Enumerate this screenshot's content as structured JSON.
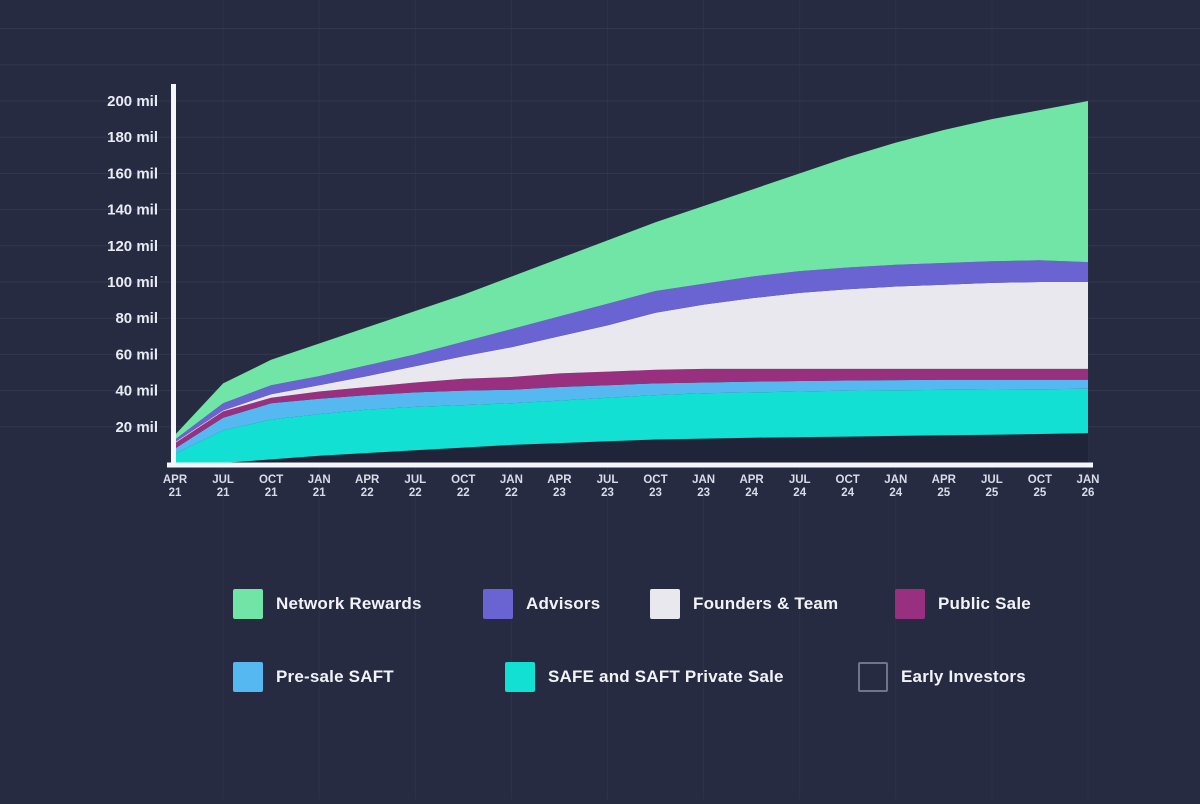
{
  "page": {
    "background_color": "#262b42",
    "axis_color": "#f5f6fa",
    "grid_color_h": "rgba(255,255,255,0.06)",
    "grid_color_v": "rgba(255,255,255,0.035)",
    "y_label_color": "#e9ebf3",
    "x_label_color": "#d9dce8"
  },
  "chart_data": {
    "type": "area",
    "stacked": true,
    "title": "",
    "xlabel": "",
    "ylabel": "",
    "y_unit": "mil",
    "ylim": [
      0,
      200
    ],
    "y_tick_step": 20,
    "y_tick_labels": [
      "20 mil",
      "40 mil",
      "60 mil",
      "80 mil",
      "100 mil",
      "120 mil",
      "140 mil",
      "160 mil",
      "180 mil",
      "200 mil"
    ],
    "x_labels": [
      "APR 21",
      "JUL 21",
      "OCT 21",
      "JAN 21",
      "APR 22",
      "JUL 22",
      "OCT 22",
      "JAN 22",
      "APR 23",
      "JUL 23",
      "OCT 23",
      "JAN 23",
      "APR 24",
      "JUL 24",
      "OCT 24",
      "JAN 24",
      "APR 25",
      "JUL 25",
      "OCT 25",
      "JAN 26"
    ],
    "grid": true,
    "legend_position": "bottom",
    "series": [
      {
        "id": "early_investors",
        "label": "Early Investors",
        "color": "#1f2438",
        "legend_fill": "#262b42",
        "legend_border": "#70758c",
        "values": [
          0,
          0,
          2,
          4,
          5.5,
          7,
          8.5,
          10,
          11,
          12,
          13,
          13.5,
          14,
          14.3,
          14.6,
          15,
          15.3,
          15.6,
          16,
          16.5
        ]
      },
      {
        "id": "safe_saft_private",
        "label": "SAFE and SAFT Private Sale",
        "color": "#12e0d2",
        "values": [
          5,
          18,
          22,
          23,
          24,
          24,
          23.5,
          23,
          23.5,
          24,
          24.5,
          25,
          25,
          25.2,
          25.4,
          25.2,
          25.1,
          25,
          24.8,
          24.5
        ]
      },
      {
        "id": "presale_saft",
        "label": "Pre-sale SAFT",
        "color": "#55b8f0",
        "values": [
          3,
          7,
          9,
          8.5,
          8,
          8,
          8,
          7.5,
          7.5,
          7,
          6.5,
          6,
          6,
          5.8,
          5.6,
          5.6,
          5.6,
          5.4,
          5.2,
          5
        ]
      },
      {
        "id": "public_sale",
        "label": "Public Sale",
        "color": "#98307f",
        "values": [
          3,
          3.5,
          3,
          4,
          4.5,
          5.5,
          6.5,
          7,
          7.5,
          7.5,
          7.5,
          7.5,
          7,
          6.7,
          6.4,
          6.2,
          6,
          6,
          6,
          6
        ]
      },
      {
        "id": "founders_team",
        "label": "Founders & Team",
        "color": "#e9e8ee",
        "values": [
          0.5,
          0.5,
          2,
          3.5,
          6,
          9,
          12.5,
          16.5,
          20.5,
          25.5,
          31.5,
          35.5,
          39,
          42,
          44,
          45.5,
          46.5,
          47.5,
          48,
          48
        ]
      },
      {
        "id": "advisors",
        "label": "Advisors",
        "color": "#6a63d2",
        "values": [
          1.5,
          4,
          5,
          5,
          6,
          6.5,
          8,
          10,
          11,
          12,
          12,
          11.5,
          12,
          12,
          12,
          12,
          12,
          12,
          12,
          11
        ]
      },
      {
        "id": "network_rewards",
        "label": "Network Rewards",
        "color": "#70e5a5",
        "values": [
          2.5,
          11,
          14,
          18,
          21,
          24,
          26,
          29,
          32,
          35,
          38,
          43,
          48,
          54,
          61,
          67.5,
          73.5,
          78.5,
          83,
          89
        ]
      }
    ],
    "legend_rows": [
      [
        "network_rewards",
        "advisors",
        "founders_team",
        "public_sale"
      ],
      [
        "presale_saft",
        "safe_saft_private",
        "early_investors"
      ]
    ]
  }
}
